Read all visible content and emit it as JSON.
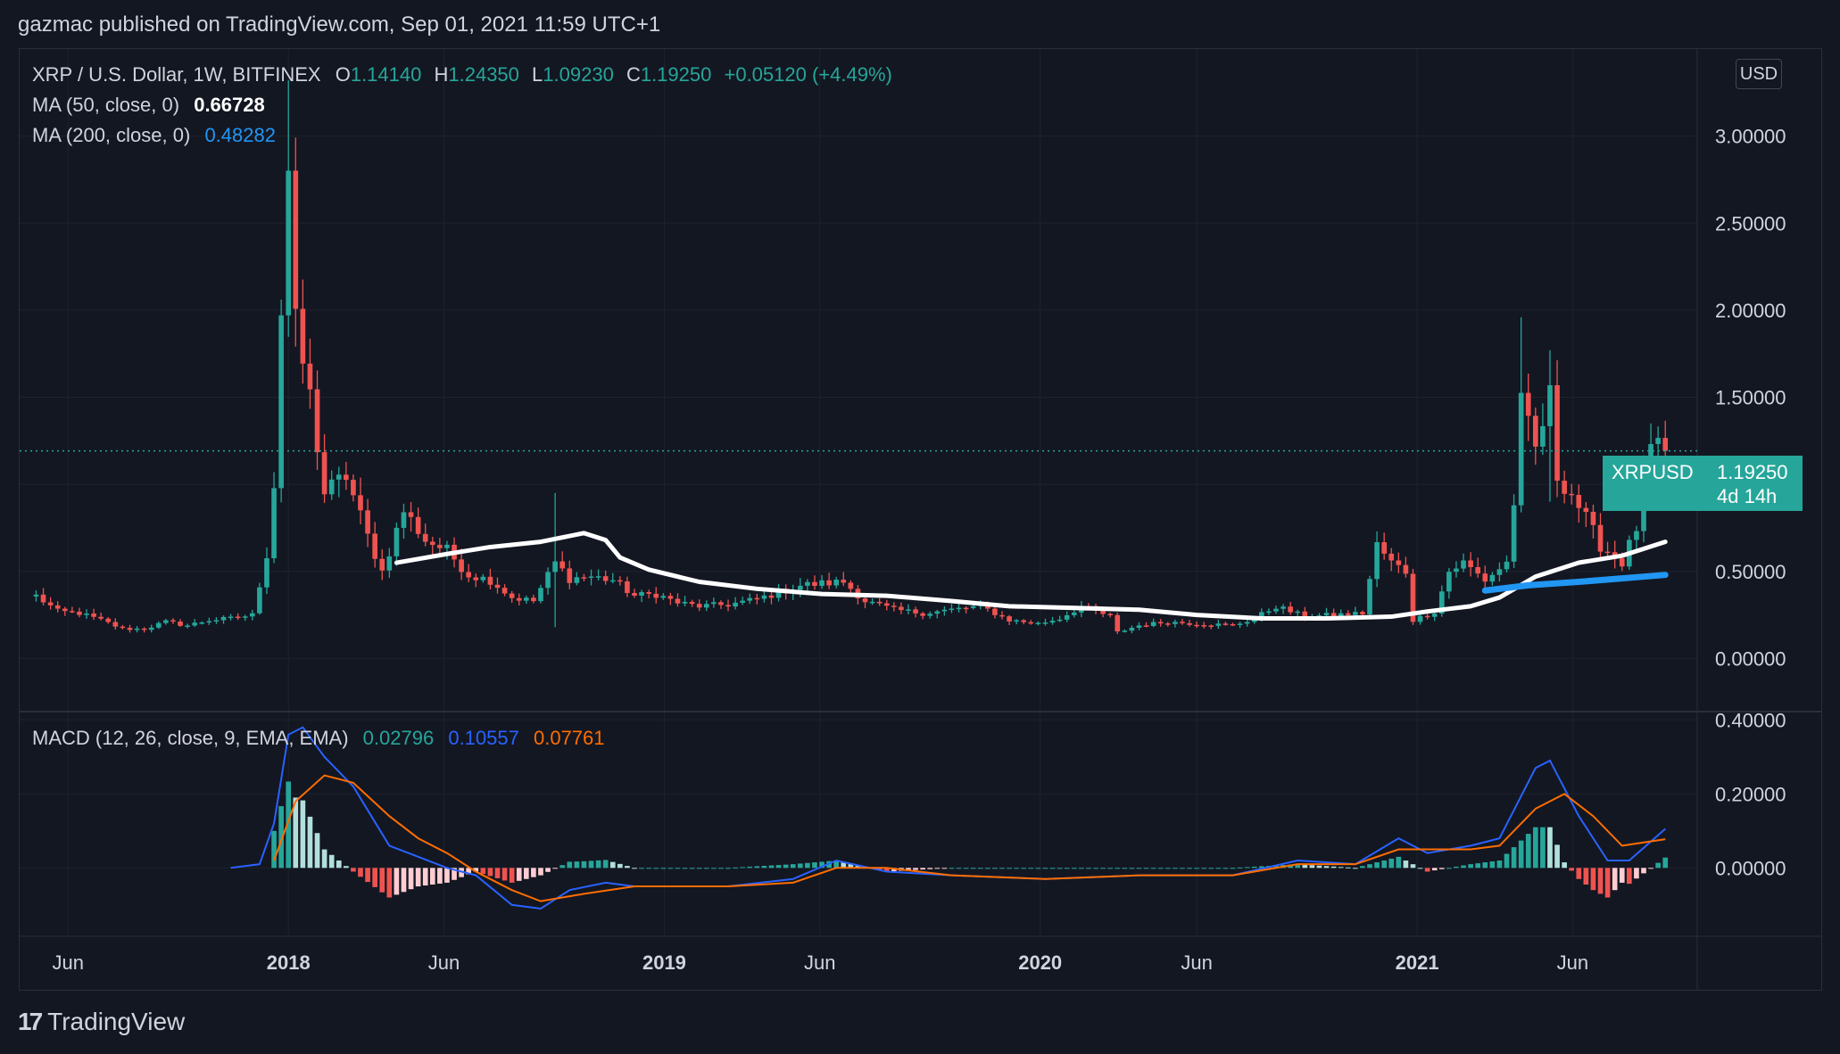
{
  "header": {
    "publisher": "gazmac published on TradingView.com, Sep 01, 2021 11:59 UTC+1"
  },
  "footer": {
    "brand": "TradingView",
    "logo_text": "17"
  },
  "legend": {
    "symbol": "XRP / U.S. Dollar, 1W, BITFINEX",
    "o_label": "O",
    "o": "1.14140",
    "h_label": "H",
    "h": "1.24350",
    "l_label": "L",
    "l": "1.09230",
    "c_label": "C",
    "c": "1.19250",
    "change": "+0.05120 (+4.49%)",
    "ma50_label": "MA (50, close, 0)",
    "ma50_value": "0.66728",
    "ma200_label": "MA (200, close, 0)",
    "ma200_value": "0.48282",
    "macd_label": "MACD (12, 26, close, 9, EMA, EMA)",
    "macd_hist": "0.02796",
    "macd_line": "0.10557",
    "macd_signal": "0.07761"
  },
  "price_tag": {
    "symbol": "XRPUSD",
    "price": "1.19250",
    "countdown": "4d 14h"
  },
  "currency_button": "USD",
  "colors": {
    "bg": "#131722",
    "up": "#26a69a",
    "down": "#ef5350",
    "ma50": "#ffffff",
    "ma200": "#2196f3",
    "macd": "#2962ff",
    "signal": "#ff6d00",
    "grid": "#1e222d"
  },
  "chart_data": [
    {
      "type": "candlestick",
      "title": "XRP / U.S. Dollar, 1W, BITFINEX",
      "ylim": [
        -0.3,
        3.5
      ],
      "yticks": [
        "0.00000",
        "0.50000",
        "1.00000",
        "1.50000",
        "2.00000",
        "2.50000",
        "3.00000"
      ],
      "ytick_values": [
        0,
        0.5,
        1.0,
        1.5,
        2.0,
        2.5,
        3.0
      ],
      "xticks": [
        "Jun",
        "2018",
        "Jun",
        "2019",
        "Jun",
        "2020",
        "Jun",
        "2021",
        "Jun"
      ],
      "xtick_dates": [
        "2017-06-01",
        "2018-01-01",
        "2018-06-01",
        "2019-01-01",
        "2019-06-01",
        "2020-01-01",
        "2020-06-01",
        "2021-01-01",
        "2021-06-01"
      ],
      "xlim": [
        "2017-04-15",
        "2021-09-30"
      ],
      "last_price": 1.1925,
      "anchors": [
        [
          "2017-05-01",
          0.36
        ],
        [
          "2017-05-22",
          0.27
        ],
        [
          "2017-06-12",
          0.26
        ],
        [
          "2017-07-03",
          0.22
        ],
        [
          "2017-07-24",
          0.17
        ],
        [
          "2017-08-14",
          0.17
        ],
        [
          "2017-09-04",
          0.21
        ],
        [
          "2017-09-25",
          0.19
        ],
        [
          "2017-10-16",
          0.22
        ],
        [
          "2017-11-06",
          0.23
        ],
        [
          "2017-11-27",
          0.25
        ],
        [
          "2017-12-11",
          0.6
        ],
        [
          "2017-12-18",
          1.0
        ],
        [
          "2017-12-25",
          2.0
        ],
        [
          "2018-01-01",
          2.8
        ],
        [
          "2018-01-08",
          1.9
        ],
        [
          "2018-01-22",
          1.5
        ],
        [
          "2018-02-05",
          0.95
        ],
        [
          "2018-02-26",
          1.05
        ],
        [
          "2018-03-19",
          0.7
        ],
        [
          "2018-04-02",
          0.5
        ],
        [
          "2018-04-23",
          0.85
        ],
        [
          "2018-05-14",
          0.68
        ],
        [
          "2018-06-04",
          0.62
        ],
        [
          "2018-06-25",
          0.48
        ],
        [
          "2018-07-16",
          0.45
        ],
        [
          "2018-08-06",
          0.35
        ],
        [
          "2018-08-27",
          0.33
        ],
        [
          "2018-09-17",
          0.55
        ],
        [
          "2018-10-01",
          0.46
        ],
        [
          "2018-10-22",
          0.47
        ],
        [
          "2018-11-12",
          0.45
        ],
        [
          "2018-12-03",
          0.36
        ],
        [
          "2018-12-24",
          0.37
        ],
        [
          "2019-01-14",
          0.32
        ],
        [
          "2019-02-04",
          0.3
        ],
        [
          "2019-03-04",
          0.31
        ],
        [
          "2019-04-01",
          0.34
        ],
        [
          "2019-05-13",
          0.42
        ],
        [
          "2019-06-03",
          0.43
        ],
        [
          "2019-06-24",
          0.44
        ],
        [
          "2019-07-15",
          0.33
        ],
        [
          "2019-08-12",
          0.28
        ],
        [
          "2019-09-09",
          0.26
        ],
        [
          "2019-10-07",
          0.28
        ],
        [
          "2019-11-04",
          0.3
        ],
        [
          "2019-12-02",
          0.22
        ],
        [
          "2019-12-30",
          0.2
        ],
        [
          "2020-01-20",
          0.23
        ],
        [
          "2020-02-10",
          0.3
        ],
        [
          "2020-03-09",
          0.24
        ],
        [
          "2020-03-16",
          0.15
        ],
        [
          "2020-04-06",
          0.19
        ],
        [
          "2020-05-04",
          0.21
        ],
        [
          "2020-06-01",
          0.2
        ],
        [
          "2020-07-06",
          0.19
        ],
        [
          "2020-07-27",
          0.23
        ],
        [
          "2020-08-17",
          0.3
        ],
        [
          "2020-09-14",
          0.24
        ],
        [
          "2020-10-12",
          0.25
        ],
        [
          "2020-11-09",
          0.26
        ],
        [
          "2020-11-23",
          0.65
        ],
        [
          "2020-12-07",
          0.55
        ],
        [
          "2020-12-21",
          0.5
        ],
        [
          "2020-12-28",
          0.22
        ],
        [
          "2021-01-18",
          0.27
        ],
        [
          "2021-02-01",
          0.5
        ],
        [
          "2021-02-15",
          0.55
        ],
        [
          "2021-03-08",
          0.45
        ],
        [
          "2021-03-29",
          0.55
        ],
        [
          "2021-04-05",
          0.9
        ],
        [
          "2021-04-12",
          1.45
        ],
        [
          "2021-04-26",
          1.2
        ],
        [
          "2021-05-10",
          1.5
        ],
        [
          "2021-05-17",
          1.05
        ],
        [
          "2021-05-31",
          0.95
        ],
        [
          "2021-06-14",
          0.8
        ],
        [
          "2021-06-28",
          0.65
        ],
        [
          "2021-07-19",
          0.55
        ],
        [
          "2021-08-02",
          0.75
        ],
        [
          "2021-08-09",
          1.05
        ],
        [
          "2021-08-16",
          1.2
        ],
        [
          "2021-08-30",
          1.1925
        ]
      ],
      "spikes": [
        [
          "2018-01-01",
          3.32,
          2.2
        ],
        [
          "2018-09-17",
          0.95,
          0.18
        ],
        [
          "2021-04-12",
          1.96,
          0.85
        ],
        [
          "2021-05-10",
          1.77,
          0.9
        ],
        [
          "2021-08-16",
          1.35,
          1.05
        ]
      ],
      "series": [
        {
          "name": "MA (50, close, 0)",
          "points": [
            [
              "2018-04-16",
              0.55
            ],
            [
              "2018-06-04",
              0.6
            ],
            [
              "2018-07-16",
              0.64
            ],
            [
              "2018-09-03",
              0.67
            ],
            [
              "2018-10-15",
              0.72
            ],
            [
              "2018-11-05",
              0.68
            ],
            [
              "2018-11-19",
              0.58
            ],
            [
              "2018-12-17",
              0.51
            ],
            [
              "2019-02-04",
              0.44
            ],
            [
              "2019-04-01",
              0.4
            ],
            [
              "2019-06-03",
              0.37
            ],
            [
              "2019-08-05",
              0.36
            ],
            [
              "2019-10-07",
              0.33
            ],
            [
              "2019-12-02",
              0.3
            ],
            [
              "2020-02-03",
              0.29
            ],
            [
              "2020-04-06",
              0.28
            ],
            [
              "2020-06-01",
              0.25
            ],
            [
              "2020-08-03",
              0.23
            ],
            [
              "2020-10-05",
              0.23
            ],
            [
              "2020-12-07",
              0.24
            ],
            [
              "2021-01-11",
              0.27
            ],
            [
              "2021-02-22",
              0.3
            ],
            [
              "2021-03-22",
              0.35
            ],
            [
              "2021-04-26",
              0.47
            ],
            [
              "2021-06-07",
              0.55
            ],
            [
              "2021-07-19",
              0.59
            ],
            [
              "2021-08-30",
              0.67
            ]
          ]
        },
        {
          "name": "MA (200, close, 0)",
          "points": [
            [
              "2021-03-08",
              0.39
            ],
            [
              "2021-04-19",
              0.42
            ],
            [
              "2021-06-07",
              0.44
            ],
            [
              "2021-07-19",
              0.46
            ],
            [
              "2021-08-30",
              0.48
            ]
          ]
        }
      ]
    },
    {
      "type": "macd",
      "title": "MACD (12, 26, close, 9, EMA, EMA)",
      "ylim": [
        -0.18,
        0.42
      ],
      "yticks": [
        "0.00000",
        "0.20000",
        "0.40000"
      ],
      "ytick_values": [
        0,
        0.2,
        0.4
      ],
      "series": [
        {
          "name": "MACD",
          "points": [
            [
              "2017-11-06",
              0.0
            ],
            [
              "2017-12-04",
              0.01
            ],
            [
              "2017-12-18",
              0.12
            ],
            [
              "2018-01-01",
              0.36
            ],
            [
              "2018-01-15",
              0.38
            ],
            [
              "2018-02-05",
              0.3
            ],
            [
              "2018-03-05",
              0.22
            ],
            [
              "2018-04-09",
              0.06
            ],
            [
              "2018-05-07",
              0.03
            ],
            [
              "2018-06-04",
              0.0
            ],
            [
              "2018-07-02",
              -0.02
            ],
            [
              "2018-08-06",
              -0.1
            ],
            [
              "2018-09-03",
              -0.11
            ],
            [
              "2018-10-01",
              -0.06
            ],
            [
              "2018-11-05",
              -0.04
            ],
            [
              "2018-12-03",
              -0.05
            ],
            [
              "2019-01-07",
              -0.05
            ],
            [
              "2019-03-04",
              -0.05
            ],
            [
              "2019-05-06",
              -0.03
            ],
            [
              "2019-06-17",
              0.02
            ],
            [
              "2019-08-05",
              -0.01
            ],
            [
              "2019-10-07",
              -0.02
            ],
            [
              "2020-01-06",
              -0.03
            ],
            [
              "2020-04-06",
              -0.02
            ],
            [
              "2020-07-06",
              -0.02
            ],
            [
              "2020-09-07",
              0.02
            ],
            [
              "2020-11-02",
              0.01
            ],
            [
              "2020-12-14",
              0.08
            ],
            [
              "2021-01-11",
              0.04
            ],
            [
              "2021-02-22",
              0.06
            ],
            [
              "2021-03-22",
              0.08
            ],
            [
              "2021-04-26",
              0.27
            ],
            [
              "2021-05-10",
              0.29
            ],
            [
              "2021-06-07",
              0.14
            ],
            [
              "2021-07-05",
              0.02
            ],
            [
              "2021-07-26",
              0.02
            ],
            [
              "2021-08-30",
              0.10557
            ]
          ]
        },
        {
          "name": "Signal",
          "points": [
            [
              "2017-12-18",
              0.02
            ],
            [
              "2018-01-08",
              0.18
            ],
            [
              "2018-02-05",
              0.25
            ],
            [
              "2018-03-05",
              0.23
            ],
            [
              "2018-04-09",
              0.14
            ],
            [
              "2018-05-07",
              0.08
            ],
            [
              "2018-06-04",
              0.04
            ],
            [
              "2018-07-02",
              -0.01
            ],
            [
              "2018-08-06",
              -0.06
            ],
            [
              "2018-09-03",
              -0.09
            ],
            [
              "2018-10-15",
              -0.07
            ],
            [
              "2018-12-03",
              -0.05
            ],
            [
              "2019-03-04",
              -0.05
            ],
            [
              "2019-05-06",
              -0.04
            ],
            [
              "2019-06-17",
              0.0
            ],
            [
              "2019-08-05",
              0.0
            ],
            [
              "2019-10-07",
              -0.02
            ],
            [
              "2020-01-06",
              -0.03
            ],
            [
              "2020-04-06",
              -0.02
            ],
            [
              "2020-07-06",
              -0.02
            ],
            [
              "2020-09-07",
              0.01
            ],
            [
              "2020-11-02",
              0.01
            ],
            [
              "2020-12-14",
              0.05
            ],
            [
              "2021-01-11",
              0.05
            ],
            [
              "2021-02-22",
              0.05
            ],
            [
              "2021-03-22",
              0.06
            ],
            [
              "2021-04-26",
              0.16
            ],
            [
              "2021-05-24",
              0.2
            ],
            [
              "2021-06-21",
              0.14
            ],
            [
              "2021-07-19",
              0.06
            ],
            [
              "2021-08-30",
              0.07761
            ]
          ]
        }
      ]
    }
  ]
}
